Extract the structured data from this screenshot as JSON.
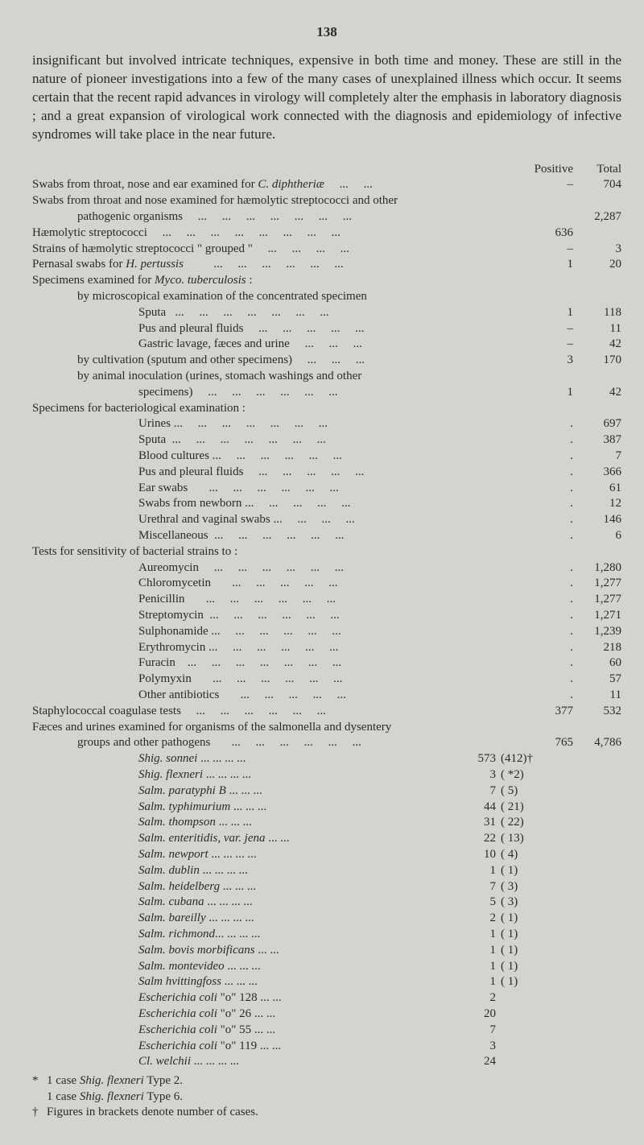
{
  "page_number": "138",
  "paragraph": "insignificant but involved intricate techniques, expensive in both time and money. These are still in the nature of pioneer investigations into a few of the many cases of unexplained illness which occur. It seems certain that the recent rapid advances in virology will completely alter the emphasis in laboratory diagnosis ; and a great expansion of virological work connected with the diagnosis and epidemiology of infective syndromes will take place in the near future.",
  "col_headers": {
    "c1": "Positive",
    "c2": "Total"
  },
  "rows": [
    {
      "t": "Swabs from throat, nose and ear examined for C. diphtheriæ     ...     ...",
      "c1": "–",
      "c2": "704",
      "ind": 0,
      "ital_frag": "C. diphtheriæ"
    },
    {
      "t": "Swabs from throat and nose examined for hæmolytic streptococci and other",
      "c1": "",
      "c2": "",
      "ind": 0
    },
    {
      "t": "pathogenic organisms     ...     ...     ...     ...     ...     ...     ...",
      "c1": "",
      "c2": "2,287",
      "ind": 1
    },
    {
      "t": "Hæmolytic streptococci     ...     ...     ...     ...     ...     ...     ...     ...",
      "c1": "636",
      "c2": "",
      "ind": 0
    },
    {
      "t": "Strains of hæmolytic streptococci \" grouped \"     ...     ...     ...     ...",
      "c1": "–",
      "c2": "3",
      "ind": 0
    },
    {
      "t": "Pernasal swabs for H. pertussis          ...     ...     ...     ...     ...     ...",
      "c1": "1",
      "c2": "20",
      "ind": 0,
      "ital_frag": "H. pertussis"
    },
    {
      "t": "Specimens examined for Myco. tuberculosis :",
      "c1": "",
      "c2": "",
      "ind": 0,
      "ital_frag": "Myco. tuberculosis"
    },
    {
      "t": "by microscopical examination of the concentrated specimen",
      "c1": "",
      "c2": "",
      "ind": 1
    },
    {
      "t": "Sputa   ...     ...     ...     ...     ...     ...     ...",
      "c1": "1",
      "c2": "118",
      "ind": 2
    },
    {
      "t": "Pus and pleural fluids     ...     ...     ...     ...     ...",
      "c1": "–",
      "c2": "11",
      "ind": 2
    },
    {
      "t": "Gastric lavage, fæces and urine     ...     ...     ...",
      "c1": "–",
      "c2": "42",
      "ind": 2
    },
    {
      "t": "by cultivation (sputum and other specimens)     ...     ...     ...",
      "c1": "3",
      "c2": "170",
      "ind": 1
    },
    {
      "t": "by animal inoculation (urines, stomach washings and other",
      "c1": "",
      "c2": "",
      "ind": 1
    },
    {
      "t": "specimens)     ...     ...     ...     ...     ...     ...",
      "c1": "1",
      "c2": "42",
      "ind": 2
    },
    {
      "t": "Specimens for bacteriological examination :",
      "c1": "",
      "c2": "",
      "ind": 0
    },
    {
      "t": "Urines ...     ...     ...     ...     ...     ...     ...",
      "c1": ".",
      "c2": "697",
      "ind": 2
    },
    {
      "t": "Sputa  ...     ...     ...     ...     ...     ...     ...",
      "c1": ".",
      "c2": "387",
      "ind": 2
    },
    {
      "t": "Blood cultures ...     ...     ...     ...     ...     ...",
      "c1": ".",
      "c2": "7",
      "ind": 2
    },
    {
      "t": "Pus and pleural fluids     ...     ...     ...     ...     ...",
      "c1": ".",
      "c2": "366",
      "ind": 2
    },
    {
      "t": "Ear swabs       ...     ...     ...     ...     ...     ...",
      "c1": ".",
      "c2": "61",
      "ind": 2
    },
    {
      "t": "Swabs from newborn ...     ...     ...     ...     ...",
      "c1": ".",
      "c2": "12",
      "ind": 2
    },
    {
      "t": "Urethral and vaginal swabs ...     ...     ...     ...",
      "c1": ".",
      "c2": "146",
      "ind": 2
    },
    {
      "t": "Miscellaneous  ...     ...     ...     ...     ...     ...",
      "c1": ".",
      "c2": "6",
      "ind": 2
    },
    {
      "t": "Tests for sensitivity of bacterial strains to :",
      "c1": "",
      "c2": "",
      "ind": 0
    },
    {
      "t": "Aureomycin     ...     ...     ...     ...     ...     ...",
      "c1": ".",
      "c2": "1,280",
      "ind": 2
    },
    {
      "t": "Chloromycetin       ...     ...     ...     ...     ...",
      "c1": ".",
      "c2": "1,277",
      "ind": 2
    },
    {
      "t": "Penicillin       ...     ...     ...     ...     ...     ...",
      "c1": ".",
      "c2": "1,277",
      "ind": 2
    },
    {
      "t": "Streptomycin  ...     ...     ...     ...     ...     ...",
      "c1": ".",
      "c2": "1,271",
      "ind": 2
    },
    {
      "t": "Sulphonamide ...     ...     ...     ...     ...     ...",
      "c1": ".",
      "c2": "1,239",
      "ind": 2
    },
    {
      "t": "Erythromycin ...     ...     ...     ...     ...     ...",
      "c1": ".",
      "c2": "218",
      "ind": 2
    },
    {
      "t": "Furacin    ...     ...     ...     ...     ...     ...     ...",
      "c1": ".",
      "c2": "60",
      "ind": 2
    },
    {
      "t": "Polymyxin       ...     ...     ...     ...     ...     ...",
      "c1": ".",
      "c2": "57",
      "ind": 2
    },
    {
      "t": "Other antibiotics       ...     ...     ...     ...     ...",
      "c1": ".",
      "c2": "11",
      "ind": 2
    },
    {
      "t": "Staphylococcal coagulase tests     ...     ...     ...     ...     ...     ...",
      "c1": "377",
      "c2": "532",
      "ind": 0
    },
    {
      "t": "Fæces and urines examined for organisms of the salmonella and dysentery",
      "c1": "",
      "c2": "",
      "ind": 0
    },
    {
      "t": "groups and other pathogens       ...     ...     ...     ...     ...     ...",
      "c1": "765",
      "c2": "4,786",
      "ind": 1
    }
  ],
  "organisms": [
    {
      "name": "Shig. sonnei",
      "suffix": "   ...     ...     ...     ...",
      "n1": "573",
      "n2": "(412)†"
    },
    {
      "name": "Shig. flexneri",
      "suffix": "  ...     ...     ...     ...",
      "n1": "3",
      "n2": "( *2)"
    },
    {
      "name": "Salm. paratyphi B",
      "suffix": "     ...     ...     ...",
      "n1": "7",
      "n2": "(  5)"
    },
    {
      "name": "Salm. typhimurium",
      "suffix": "     ...     ...     ...",
      "n1": "44",
      "n2": "( 21)"
    },
    {
      "name": "Salm. thompson",
      "suffix": "     ...     ...     ...",
      "n1": "31",
      "n2": "( 22)"
    },
    {
      "name": "Salm. enteritidis, var. jena",
      "suffix": "     ...     ...",
      "n1": "22",
      "n2": "( 13)"
    },
    {
      "name": "Salm. newport",
      "suffix": "  ...     ...     ...     ...",
      "n1": "10",
      "n2": "(  4)"
    },
    {
      "name": "Salm. dublin",
      "suffix": "   ...     ...     ...     ...",
      "n1": "1",
      "n2": "(  1)"
    },
    {
      "name": "Salm. heidelberg",
      "suffix": "       ...     ...     ...",
      "n1": "7",
      "n2": "(  3)"
    },
    {
      "name": "Salm. cubana",
      "suffix": "  ...     ...     ...     ...",
      "n1": "5",
      "n2": "(  3)"
    },
    {
      "name": "Salm. bareilly",
      "suffix": "   ...     ...     ...     ...",
      "n1": "2",
      "n2": "(  1)"
    },
    {
      "name": "Salm. richmond",
      "suffix": "...     ...     ...     ...",
      "n1": "1",
      "n2": "(  1)"
    },
    {
      "name": "Salm. bovis morbificans",
      "suffix": "     ...     ...",
      "n1": "1",
      "n2": "(  1)"
    },
    {
      "name": "Salm. montevideo",
      "suffix": "       ...     ...     ...",
      "n1": "1",
      "n2": "(  1)"
    },
    {
      "name": "Salm hvittingfoss",
      "suffix": "       ...     ...     ...",
      "n1": "1",
      "n2": "(  1)"
    },
    {
      "name": "Escherichia coli",
      "suffix_plain": " \"o\" 128       ...     ...",
      "n1": "2",
      "n2": ""
    },
    {
      "name": "Escherichia coli",
      "suffix_plain": " \"o\"  26       ...     ...",
      "n1": "20",
      "n2": ""
    },
    {
      "name": "Escherichia coli",
      "suffix_plain": " \"o\"  55       ...     ...",
      "n1": "7",
      "n2": ""
    },
    {
      "name": "Escherichia coli",
      "suffix_plain": " \"o\" 119       ...     ...",
      "n1": "3",
      "n2": ""
    },
    {
      "name": "Cl. welchii",
      "suffix": "       ...     ...     ...     ...",
      "n1": "24",
      "n2": ""
    }
  ],
  "footnotes": [
    {
      "mark": "*",
      "text": "1 case Shig. flexneri Type 2.",
      "ital": "Shig. flexneri"
    },
    {
      "mark": "",
      "text": "1 case Shig. flexneri Type 6.",
      "ital": "Shig. flexneri"
    },
    {
      "mark": "†",
      "text": "Figures in brackets denote number of cases.",
      "ital": ""
    }
  ]
}
